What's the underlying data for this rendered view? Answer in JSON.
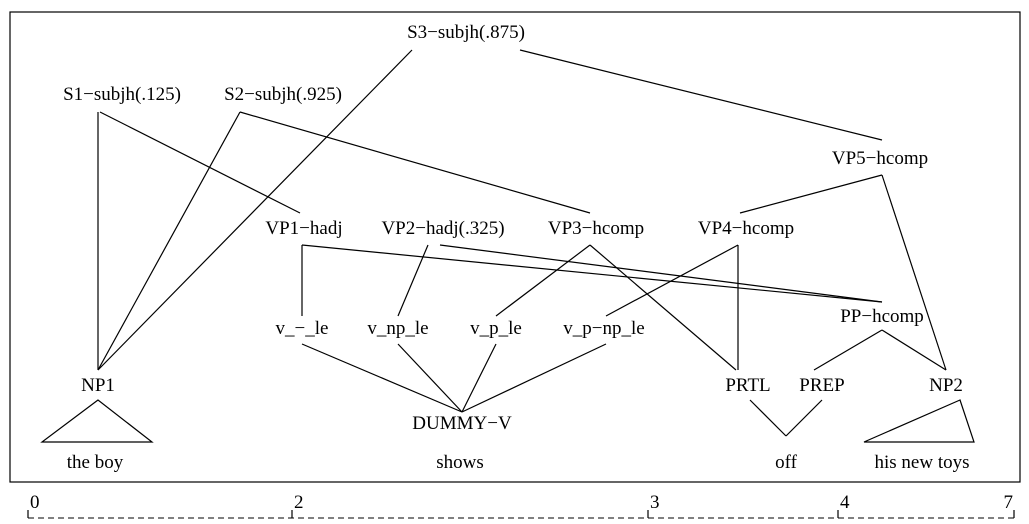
{
  "nodes": {
    "S3": "S3−subjh(.875)",
    "S1": "S1−subjh(.125)",
    "S2": "S2−subjh(.925)",
    "VP5": "VP5−hcomp",
    "VP1": "VP1−hadj",
    "VP2": "VP2−hadj(.325)",
    "VP3": "VP3−hcomp",
    "VP4": "VP4−hcomp",
    "PP": "PP−hcomp",
    "v1": "v_−_le",
    "v2": "v_np_le",
    "v3": "v_p_le",
    "v4": "v_p−np_le",
    "NP1": "NP1",
    "DUMMY": "DUMMY−V",
    "PRTL": "PRTL",
    "PREP": "PREP",
    "NP2": "NP2"
  },
  "words": {
    "the_boy": "the boy",
    "shows": "shows",
    "off": "off",
    "his_new_toys": "his new toys"
  },
  "axis_ticks": [
    "0",
    "2",
    "3",
    "4",
    "7"
  ]
}
